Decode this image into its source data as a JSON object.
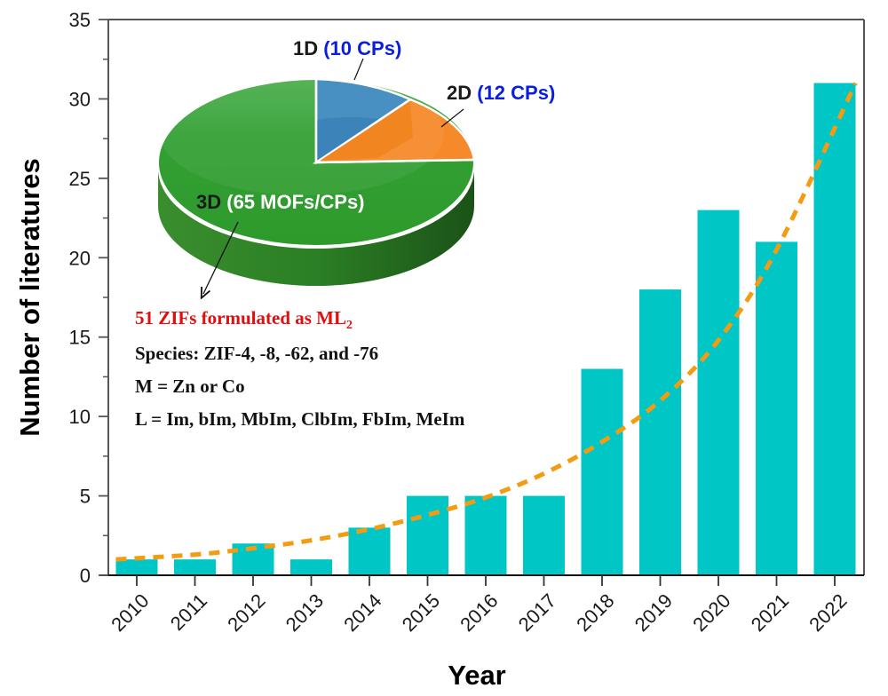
{
  "colors": {
    "bar": "#00c6c6",
    "trend": "#f39c12",
    "axis": "#555555",
    "pie_1d": "#3d88bf",
    "pie_2d": "#f68a2a",
    "pie_3d": "#33a034",
    "label_blue": "#0a1ee0",
    "note_red": "#e01010"
  },
  "chart_data": [
    {
      "type": "bar",
      "title": "",
      "xlabel": "Year",
      "ylabel": "Number of literatures",
      "categories": [
        "2010",
        "2011",
        "2012",
        "2013",
        "2014",
        "2015",
        "2016",
        "2017",
        "2018",
        "2019",
        "2020",
        "2021",
        "2022"
      ],
      "values": [
        1,
        1,
        2,
        1,
        3,
        5,
        5,
        5,
        13,
        18,
        23,
        21,
        31
      ],
      "ylim": [
        0,
        35
      ],
      "yticks": [
        0,
        5,
        10,
        15,
        20,
        25,
        30,
        35
      ],
      "ytick_labels": [
        "0",
        "5",
        "10",
        "15",
        "20",
        "25",
        "30",
        "35"
      ],
      "grid": false,
      "trendline": {
        "type": "exponential",
        "style": "dashed",
        "values": [
          1.0,
          1.3,
          1.7,
          2.2,
          2.9,
          3.8,
          4.9,
          6.4,
          8.4,
          11.0,
          14.8,
          20.5,
          31.0
        ]
      }
    },
    {
      "type": "pie",
      "style": "3d",
      "slices": [
        {
          "dim": "1D",
          "detail": "(10 CPs)",
          "value": 10
        },
        {
          "dim": "2D",
          "detail": "(12 CPs)",
          "value": 12
        },
        {
          "dim": "3D",
          "detail": "(65 MOFs/CPs)",
          "value": 65
        }
      ]
    }
  ],
  "annotation": {
    "headline": "51 ZIFs formulated as ML",
    "headline_sub": "2",
    "lines": [
      "Species: ZIF-4, -8, -62, and -76",
      "M = Zn or Co",
      "L = Im, bIm, MbIm, ClbIm, FbIm, MeIm"
    ]
  }
}
